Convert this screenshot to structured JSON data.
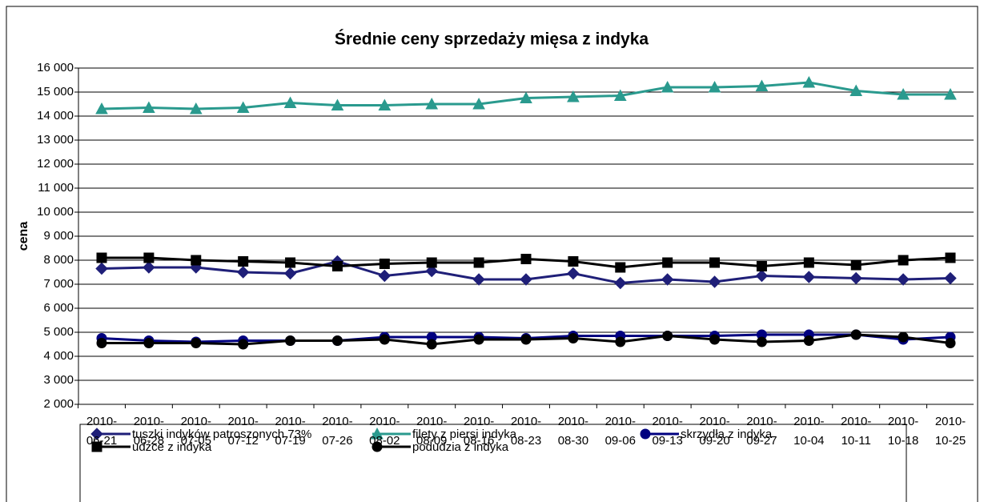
{
  "chart_data": {
    "type": "line",
    "title": "Średnie ceny sprzedaży mięsa z indyka",
    "y_label": "cena",
    "categories": [
      "2010-06-21",
      "2010-06-28",
      "2010-07-05",
      "2010-07-12",
      "2010-07-19",
      "2010-07-26",
      "2010-08-02",
      "2010-08-09",
      "2010-08-16",
      "2010-08-23",
      "2010-08-30",
      "2010-09-06",
      "2010-09-13",
      "2010-09-20",
      "2010-09-27",
      "2010-10-04",
      "2010-10-11",
      "2010-10-18",
      "2010-10-25"
    ],
    "series": [
      {
        "name": "tuszki indyków  patroszonych 73%",
        "color": "#1f1f78",
        "marker": "diamond",
        "values": [
          7650,
          7700,
          7700,
          7500,
          7450,
          7950,
          7350,
          7550,
          7200,
          7200,
          7450,
          7050,
          7200,
          7100,
          7350,
          7300,
          7250,
          7200,
          7250
        ]
      },
      {
        "name": "filety z piersi indyka",
        "color": "#2a9a8e",
        "marker": "triangle",
        "values": [
          14300,
          14350,
          14300,
          14350,
          14550,
          14450,
          14450,
          14500,
          14500,
          14750,
          14800,
          14850,
          15200,
          15200,
          15250,
          15400,
          15050,
          14900,
          14900
        ]
      },
      {
        "name": "skrzydła z indyka",
        "color": "#000080",
        "marker": "circle",
        "values": [
          4750,
          4650,
          4600,
          4650,
          4650,
          4650,
          4800,
          4800,
          4800,
          4750,
          4850,
          4850,
          4850,
          4850,
          4900,
          4900,
          4900,
          4700,
          4800
        ]
      },
      {
        "name": "udźce z indyka",
        "color": "#000000",
        "marker": "square",
        "values": [
          8100,
          8100,
          8000,
          7950,
          7900,
          7750,
          7850,
          7900,
          7900,
          8050,
          7950,
          7700,
          7900,
          7900,
          7750,
          7900,
          7800,
          8000,
          8100
        ]
      },
      {
        "name": "podudzia z indyka",
        "color": "#000000",
        "marker": "circle",
        "values": [
          4550,
          4550,
          4550,
          4500,
          4650,
          4650,
          4700,
          4500,
          4700,
          4700,
          4750,
          4600,
          4850,
          4700,
          4600,
          4650,
          4900,
          4800,
          4550
        ]
      }
    ],
    "ylim": [
      2000,
      16000
    ],
    "yticks": [
      {
        "value": 2000,
        "label": "2 000"
      },
      {
        "value": 3000,
        "label": "3 000"
      },
      {
        "value": 4000,
        "label": "4 000"
      },
      {
        "value": 5000,
        "label": "5 000"
      },
      {
        "value": 6000,
        "label": "6 000"
      },
      {
        "value": 7000,
        "label": "7 000"
      },
      {
        "value": 8000,
        "label": "8 000"
      },
      {
        "value": 9000,
        "label": "9 000"
      },
      {
        "value": 10000,
        "label": "10 000"
      },
      {
        "value": 11000,
        "label": "11 000"
      },
      {
        "value": 12000,
        "label": "12 000"
      },
      {
        "value": 13000,
        "label": "13 000"
      },
      {
        "value": 14000,
        "label": "14 000"
      },
      {
        "value": 15000,
        "label": "15 000"
      },
      {
        "value": 16000,
        "label": "16 000"
      }
    ],
    "grid": true
  }
}
